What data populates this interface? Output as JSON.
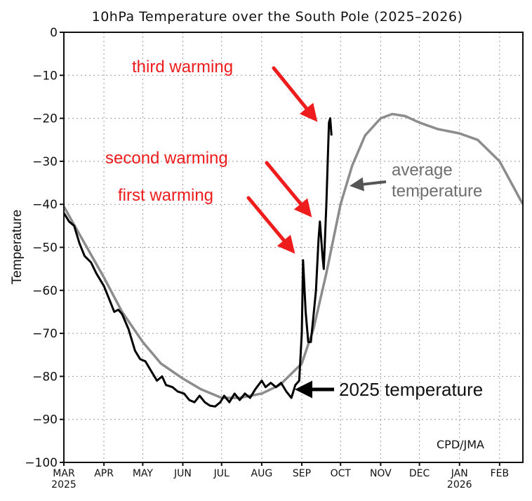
{
  "chart_data": {
    "type": "line",
    "title": "10hPa Temperature over the South Pole (2025–2026)",
    "ylabel": "Temperature",
    "xlabel": "",
    "ylim": [
      -100,
      0
    ],
    "yticks": [
      0,
      -10,
      -20,
      -30,
      -40,
      -50,
      -60,
      -70,
      -80,
      -90,
      -100
    ],
    "xlim": [
      "2025-03-01",
      "2026-02-19"
    ],
    "xticks": [
      {
        "date": "2025-03-01",
        "label": "MAR",
        "sub": "2025"
      },
      {
        "date": "2025-04-01",
        "label": "APR"
      },
      {
        "date": "2025-05-01",
        "label": "MAY"
      },
      {
        "date": "2025-06-01",
        "label": "JUN"
      },
      {
        "date": "2025-07-01",
        "label": "JUL"
      },
      {
        "date": "2025-08-01",
        "label": "AUG"
      },
      {
        "date": "2025-09-01",
        "label": "SEP"
      },
      {
        "date": "2025-10-01",
        "label": "OCT"
      },
      {
        "date": "2025-11-01",
        "label": "NOV"
      },
      {
        "date": "2025-12-01",
        "label": "DEC"
      },
      {
        "date": "2026-01-01",
        "label": "JAN",
        "sub": "2026"
      },
      {
        "date": "2026-02-01",
        "label": "FEB"
      }
    ],
    "grid": true,
    "credit": "CPD/JMA",
    "series": [
      {
        "key": "average",
        "color": "#8c8c8c",
        "points": [
          [
            "2025-03-01",
            -40.5
          ],
          [
            "2025-03-15",
            -48
          ],
          [
            "2025-04-01",
            -57
          ],
          [
            "2025-04-15",
            -65
          ],
          [
            "2025-05-01",
            -72
          ],
          [
            "2025-05-15",
            -77
          ],
          [
            "2025-06-01",
            -80.5
          ],
          [
            "2025-06-15",
            -83
          ],
          [
            "2025-07-01",
            -85
          ],
          [
            "2025-07-15",
            -85
          ],
          [
            "2025-08-01",
            -84
          ],
          [
            "2025-08-15",
            -82
          ],
          [
            "2025-09-01",
            -77
          ],
          [
            "2025-09-10",
            -69
          ],
          [
            "2025-09-20",
            -56
          ],
          [
            "2025-10-01",
            -40
          ],
          [
            "2025-10-10",
            -31
          ],
          [
            "2025-10-20",
            -24
          ],
          [
            "2025-11-01",
            -20
          ],
          [
            "2025-11-10",
            -19
          ],
          [
            "2025-11-20",
            -19.5
          ],
          [
            "2025-12-01",
            -21
          ],
          [
            "2025-12-15",
            -22.5
          ],
          [
            "2026-01-01",
            -23.5
          ],
          [
            "2026-01-15",
            -25
          ],
          [
            "2026-02-01",
            -30
          ],
          [
            "2026-02-10",
            -35
          ],
          [
            "2026-02-19",
            -40
          ]
        ]
      },
      {
        "key": "2025",
        "color": "#000000",
        "points": [
          [
            "2025-03-01",
            -42
          ],
          [
            "2025-03-05",
            -44
          ],
          [
            "2025-03-09",
            -45
          ],
          [
            "2025-03-13",
            -49
          ],
          [
            "2025-03-17",
            -52
          ],
          [
            "2025-03-22",
            -53.5
          ],
          [
            "2025-03-26",
            -56
          ],
          [
            "2025-04-01",
            -59
          ],
          [
            "2025-04-05",
            -62
          ],
          [
            "2025-04-09",
            -65
          ],
          [
            "2025-04-12",
            -64.5
          ],
          [
            "2025-04-15",
            -65.5
          ],
          [
            "2025-04-20",
            -69
          ],
          [
            "2025-04-25",
            -74
          ],
          [
            "2025-04-29",
            -76
          ],
          [
            "2025-05-03",
            -76.5
          ],
          [
            "2025-05-08",
            -79
          ],
          [
            "2025-05-12",
            -81
          ],
          [
            "2025-05-16",
            -80
          ],
          [
            "2025-05-19",
            -82
          ],
          [
            "2025-05-24",
            -82.5
          ],
          [
            "2025-05-28",
            -83.5
          ],
          [
            "2025-06-02",
            -84
          ],
          [
            "2025-06-06",
            -85.5
          ],
          [
            "2025-06-10",
            -86
          ],
          [
            "2025-06-14",
            -84.5
          ],
          [
            "2025-06-18",
            -86
          ],
          [
            "2025-06-22",
            -86.8
          ],
          [
            "2025-06-26",
            -87
          ],
          [
            "2025-06-30",
            -86
          ],
          [
            "2025-07-03",
            -84.5
          ],
          [
            "2025-07-07",
            -86
          ],
          [
            "2025-07-11",
            -84
          ],
          [
            "2025-07-15",
            -85.5
          ],
          [
            "2025-07-19",
            -84
          ],
          [
            "2025-07-23",
            -85
          ],
          [
            "2025-07-27",
            -83
          ],
          [
            "2025-08-01",
            -81
          ],
          [
            "2025-08-04",
            -82.5
          ],
          [
            "2025-08-08",
            -81.5
          ],
          [
            "2025-08-12",
            -82.5
          ],
          [
            "2025-08-16",
            -81.5
          ],
          [
            "2025-08-20",
            -83.5
          ],
          [
            "2025-08-24",
            -85
          ],
          [
            "2025-08-27",
            -82
          ],
          [
            "2025-08-30",
            -81
          ],
          [
            "2025-09-01",
            -70
          ],
          [
            "2025-09-02",
            -53
          ],
          [
            "2025-09-04",
            -65
          ],
          [
            "2025-09-06",
            -72
          ],
          [
            "2025-09-08",
            -72
          ],
          [
            "2025-09-10",
            -66
          ],
          [
            "2025-09-12",
            -60
          ],
          [
            "2025-09-14",
            -48
          ],
          [
            "2025-09-15",
            -44
          ],
          [
            "2025-09-17",
            -52
          ],
          [
            "2025-09-18",
            -55
          ],
          [
            "2025-09-20",
            -40
          ],
          [
            "2025-09-22",
            -21
          ],
          [
            "2025-09-23",
            -20
          ],
          [
            "2025-09-24",
            -24
          ]
        ]
      }
    ]
  },
  "annotations": {
    "third": "third warming",
    "second": "second warming",
    "first": "first warming",
    "current": "2025 temperature",
    "average_line1": "average",
    "average_line2": "temperature",
    "red": "#ee1c1c",
    "gray_text": "#6e6e6e"
  }
}
